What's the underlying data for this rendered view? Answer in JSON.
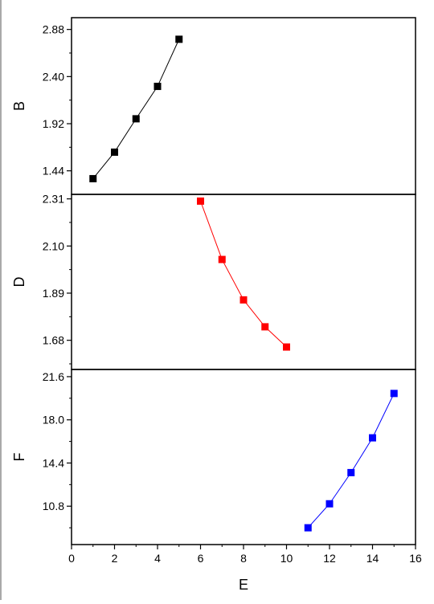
{
  "chart_data": {
    "type": "line",
    "layout": "stacked panels sharing the x-axis",
    "xlabel": "E",
    "xlim": [
      0,
      16
    ],
    "xticks": [
      0,
      2,
      4,
      6,
      8,
      10,
      12,
      14,
      16
    ],
    "xtick_labels": [
      "0",
      "2",
      "4",
      "6",
      "8",
      "10",
      "12",
      "14",
      "16"
    ],
    "grid": false,
    "legend": "none",
    "marker": "square",
    "panels": [
      {
        "ylabel": "B",
        "ylim": [
          1.2,
          3.0
        ],
        "yticks": [
          1.44,
          1.92,
          2.4,
          2.88
        ],
        "ytick_labels": [
          "1.44",
          "1.92",
          "2.40",
          "2.88"
        ],
        "color": "#000000",
        "x": [
          1,
          2,
          3,
          4,
          5
        ],
        "y": [
          1.36,
          1.63,
          1.97,
          2.3,
          2.78
        ]
      },
      {
        "ylabel": "D",
        "ylim": [
          1.55,
          2.33
        ],
        "yticks": [
          1.68,
          1.89,
          2.1,
          2.31
        ],
        "ytick_labels": [
          "1.68",
          "1.89",
          "2.10",
          "2.31"
        ],
        "color": "#ff0000",
        "x": [
          6,
          7,
          8,
          9,
          10
        ],
        "y": [
          2.3,
          2.04,
          1.86,
          1.74,
          1.65
        ]
      },
      {
        "ylabel": "F",
        "ylim": [
          7.6,
          22.2
        ],
        "yticks": [
          10.8,
          14.4,
          18.0,
          21.6
        ],
        "ytick_labels": [
          "10.8",
          "14.4",
          "18.0",
          "21.6"
        ],
        "color": "#0000ff",
        "x": [
          11,
          12,
          13,
          14,
          15
        ],
        "y": [
          9.0,
          11.0,
          13.6,
          16.5,
          20.2
        ]
      }
    ]
  }
}
